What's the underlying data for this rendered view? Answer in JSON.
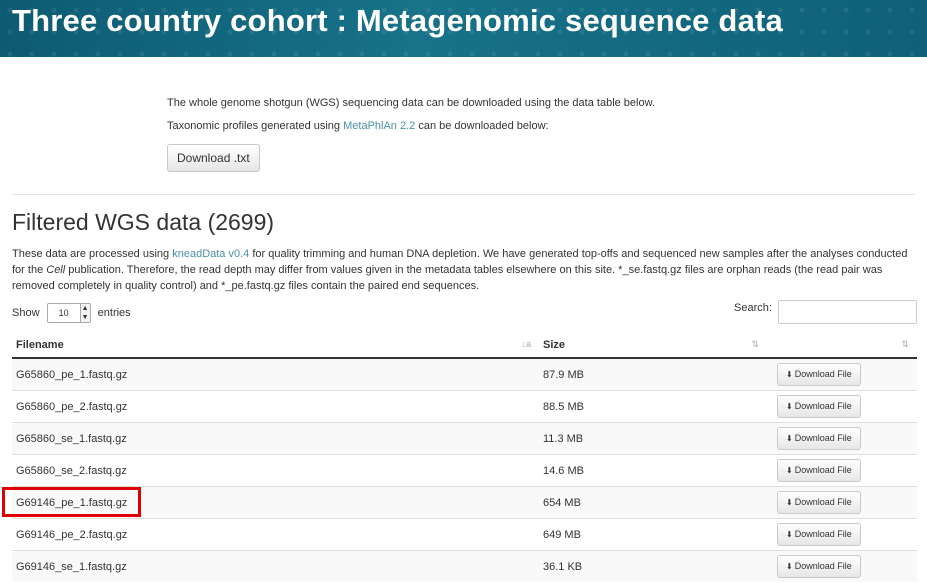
{
  "banner": {
    "title": "Three country cohort : Metagenomic sequence data"
  },
  "intro": {
    "line1": "The whole genome shotgun (WGS) sequencing data can be downloaded using the data table below.",
    "line2_pre": "Taxonomic profiles generated using ",
    "line2_link": "MetaPhlAn 2.2",
    "line2_post": " can be downloaded below:",
    "download_txt_label": "Download .txt"
  },
  "section": {
    "title": "Filtered WGS data (2699)",
    "desc_pre": "These data are processed using ",
    "desc_link": "kneadData v0.4",
    "desc_mid": " for quality trimming and human DNA depletion. We have generated top-offs and sequenced new samples after the analyses conducted for the ",
    "desc_italic": "Cell",
    "desc_post": " publication. Therefore, the read depth may differ from values given in the metadata tables elsewhere on this site. *_se.fastq.gz files are orphan reads (the read pair was removed completely in quality control) and *_pe.fastq.gz files contain the paired end sequences."
  },
  "controls": {
    "show_label": "Show",
    "entries_value": "10",
    "entries_label": "entries",
    "search_label": "Search:",
    "search_value": ""
  },
  "table": {
    "headers": {
      "filename": "Filename",
      "size": "Size"
    },
    "download_label": "Download File",
    "rows": [
      {
        "filename": "G65860_pe_1.fastq.gz",
        "size": "87.9 MB"
      },
      {
        "filename": "G65860_pe_2.fastq.gz",
        "size": "88.5 MB"
      },
      {
        "filename": "G65860_se_1.fastq.gz",
        "size": "11.3 MB"
      },
      {
        "filename": "G65860_se_2.fastq.gz",
        "size": "14.6 MB"
      },
      {
        "filename": "G69146_pe_1.fastq.gz",
        "size": "654 MB"
      },
      {
        "filename": "G69146_pe_2.fastq.gz",
        "size": "649 MB"
      },
      {
        "filename": "G69146_se_1.fastq.gz",
        "size": "36.1 KB"
      }
    ]
  },
  "colors": {
    "highlight": "#e00000",
    "link": "#4a90a8",
    "banner": "#0d5b73"
  }
}
